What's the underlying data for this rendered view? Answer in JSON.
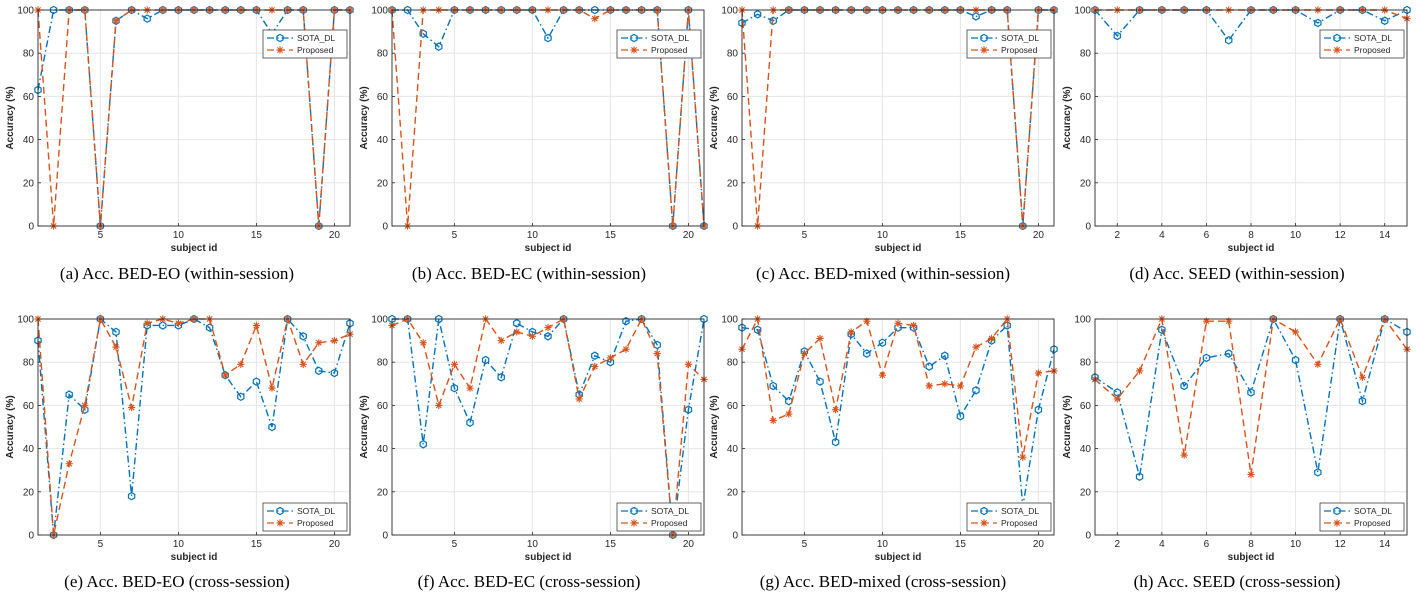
{
  "colors": {
    "sota": "#0072BD",
    "proposed": "#D95319",
    "grid": "#e6e6e6",
    "axis": "#262626"
  },
  "chart_data": [
    {
      "type": "line",
      "panel": "a",
      "caption": "(a) Acc. BED-EO (within-session)",
      "xlabel": "subject id",
      "ylabel": "Accuracy (%)",
      "xlim": [
        1,
        21
      ],
      "ylim": [
        0,
        100
      ],
      "xticks": [
        5,
        10,
        15,
        20
      ],
      "yticks": [
        0,
        20,
        40,
        60,
        80,
        100
      ],
      "grid": true,
      "legend": "top-right",
      "x": [
        1,
        2,
        3,
        4,
        5,
        6,
        7,
        8,
        9,
        10,
        11,
        12,
        13,
        14,
        15,
        16,
        17,
        18,
        19,
        20,
        21
      ],
      "series": [
        {
          "name": "SOTA_DL",
          "values": [
            63,
            100,
            100,
            100,
            0,
            95,
            100,
            96,
            100,
            100,
            100,
            100,
            100,
            100,
            100,
            89,
            100,
            100,
            0,
            100,
            100
          ]
        },
        {
          "name": "Proposed",
          "values": [
            100,
            0,
            100,
            100,
            0,
            95,
            100,
            100,
            100,
            100,
            100,
            100,
            100,
            100,
            100,
            100,
            100,
            100,
            0,
            100,
            100
          ]
        }
      ]
    },
    {
      "type": "line",
      "panel": "b",
      "caption": "(b) Acc. BED-EC (within-session)",
      "xlabel": "subject id",
      "ylabel": "Accuracy (%)",
      "xlim": [
        1,
        21
      ],
      "ylim": [
        0,
        100
      ],
      "xticks": [
        5,
        10,
        15,
        20
      ],
      "yticks": [
        0,
        20,
        40,
        60,
        80,
        100
      ],
      "grid": true,
      "legend": "top-right",
      "x": [
        1,
        2,
        3,
        4,
        5,
        6,
        7,
        8,
        9,
        10,
        11,
        12,
        13,
        14,
        15,
        16,
        17,
        18,
        19,
        20,
        21
      ],
      "series": [
        {
          "name": "SOTA_DL",
          "values": [
            100,
            100,
            89,
            83,
            100,
            100,
            100,
            100,
            100,
            100,
            87,
            100,
            100,
            100,
            100,
            100,
            100,
            100,
            0,
            100,
            0
          ]
        },
        {
          "name": "Proposed",
          "values": [
            100,
            0,
            100,
            100,
            100,
            100,
            100,
            100,
            100,
            100,
            100,
            100,
            100,
            96,
            100,
            100,
            100,
            100,
            0,
            100,
            0
          ]
        }
      ]
    },
    {
      "type": "line",
      "panel": "c",
      "caption": "(c) Acc. BED-mixed (within-session)",
      "xlabel": "subject id",
      "ylabel": "Accuracy (%)",
      "xlim": [
        1,
        21
      ],
      "ylim": [
        0,
        100
      ],
      "xticks": [
        5,
        10,
        15,
        20
      ],
      "yticks": [
        0,
        20,
        40,
        60,
        80,
        100
      ],
      "grid": true,
      "legend": "top-right",
      "x": [
        1,
        2,
        3,
        4,
        5,
        6,
        7,
        8,
        9,
        10,
        11,
        12,
        13,
        14,
        15,
        16,
        17,
        18,
        19,
        20,
        21
      ],
      "series": [
        {
          "name": "SOTA_DL",
          "values": [
            94,
            98,
            95,
            100,
            100,
            100,
            100,
            100,
            100,
            100,
            100,
            100,
            100,
            100,
            100,
            97,
            100,
            100,
            0,
            100,
            100
          ]
        },
        {
          "name": "Proposed",
          "values": [
            100,
            0,
            100,
            100,
            100,
            100,
            100,
            100,
            100,
            100,
            100,
            100,
            100,
            100,
            100,
            100,
            100,
            100,
            0,
            100,
            100
          ]
        }
      ]
    },
    {
      "type": "line",
      "panel": "d",
      "caption": "(d) Acc. SEED (within-session)",
      "xlabel": "subject id",
      "ylabel": "Accuracy (%)",
      "xlim": [
        1,
        15
      ],
      "ylim": [
        0,
        100
      ],
      "xticks": [
        2,
        4,
        6,
        8,
        10,
        12,
        14
      ],
      "yticks": [
        0,
        20,
        40,
        60,
        80,
        100
      ],
      "grid": true,
      "legend": "top-right",
      "x": [
        1,
        2,
        3,
        4,
        5,
        6,
        7,
        8,
        9,
        10,
        11,
        12,
        13,
        14,
        15
      ],
      "series": [
        {
          "name": "SOTA_DL",
          "values": [
            100,
            88,
            100,
            100,
            100,
            100,
            86,
            100,
            100,
            100,
            94,
            100,
            100,
            95,
            100
          ]
        },
        {
          "name": "Proposed",
          "values": [
            100,
            100,
            100,
            100,
            100,
            100,
            100,
            100,
            100,
            100,
            100,
            100,
            100,
            100,
            96
          ]
        }
      ]
    },
    {
      "type": "line",
      "panel": "e",
      "caption": "(e) Acc. BED-EO (cross-session)",
      "xlabel": "subject id",
      "ylabel": "Accuracy (%)",
      "xlim": [
        1,
        21
      ],
      "ylim": [
        0,
        100
      ],
      "xticks": [
        5,
        10,
        15,
        20
      ],
      "yticks": [
        0,
        20,
        40,
        60,
        80,
        100
      ],
      "grid": true,
      "legend": "bottom-right",
      "x": [
        1,
        2,
        3,
        4,
        5,
        6,
        7,
        8,
        9,
        10,
        11,
        12,
        13,
        14,
        15,
        16,
        17,
        18,
        19,
        20,
        21
      ],
      "series": [
        {
          "name": "SOTA_DL",
          "values": [
            90,
            0,
            65,
            58,
            100,
            94,
            18,
            97,
            97,
            97,
            100,
            96,
            74,
            64,
            71,
            50,
            100,
            92,
            76,
            75,
            98
          ]
        },
        {
          "name": "Proposed",
          "values": [
            100,
            0,
            33,
            60,
            100,
            87,
            59,
            98,
            100,
            98,
            100,
            100,
            74,
            79,
            97,
            68,
            100,
            79,
            89,
            90,
            93
          ]
        }
      ]
    },
    {
      "type": "line",
      "panel": "f",
      "caption": "(f) Acc. BED-EC (cross-session)",
      "xlabel": "subject id",
      "ylabel": "Accuracy (%)",
      "xlim": [
        1,
        21
      ],
      "ylim": [
        0,
        100
      ],
      "xticks": [
        5,
        10,
        15,
        20
      ],
      "yticks": [
        0,
        20,
        40,
        60,
        80,
        100
      ],
      "grid": true,
      "legend": "bottom-right",
      "x": [
        1,
        2,
        3,
        4,
        5,
        6,
        7,
        8,
        9,
        10,
        11,
        12,
        13,
        14,
        15,
        16,
        17,
        18,
        19,
        20,
        21
      ],
      "series": [
        {
          "name": "SOTA_DL",
          "values": [
            100,
            100,
            42,
            100,
            68,
            52,
            81,
            73,
            98,
            94,
            92,
            100,
            65,
            83,
            80,
            99,
            100,
            88,
            0,
            58,
            100
          ]
        },
        {
          "name": "Proposed",
          "values": [
            97,
            100,
            89,
            60,
            79,
            68,
            100,
            90,
            94,
            92,
            96,
            100,
            63,
            78,
            82,
            86,
            100,
            84,
            0,
            79,
            72
          ]
        }
      ]
    },
    {
      "type": "line",
      "panel": "g",
      "caption": "(g) Acc. BED-mixed (cross-session)",
      "xlabel": "subject id",
      "ylabel": "Accuracy (%)",
      "xlim": [
        1,
        21
      ],
      "ylim": [
        0,
        100
      ],
      "xticks": [
        5,
        10,
        15,
        20
      ],
      "yticks": [
        0,
        20,
        40,
        60,
        80,
        100
      ],
      "grid": true,
      "legend": "bottom-right",
      "x": [
        1,
        2,
        3,
        4,
        5,
        6,
        7,
        8,
        9,
        10,
        11,
        12,
        13,
        14,
        15,
        16,
        17,
        18,
        19,
        20,
        21
      ],
      "series": [
        {
          "name": "SOTA_DL",
          "values": [
            96,
            95,
            69,
            62,
            85,
            71,
            43,
            93,
            84,
            89,
            96,
            96,
            78,
            83,
            55,
            67,
            90,
            97,
            13,
            58,
            86
          ]
        },
        {
          "name": "Proposed",
          "values": [
            86,
            100,
            53,
            56,
            84,
            91,
            58,
            94,
            99,
            74,
            98,
            97,
            69,
            70,
            69,
            87,
            91,
            100,
            36,
            75,
            76
          ]
        }
      ]
    },
    {
      "type": "line",
      "panel": "h",
      "caption": "(h) Acc. SEED (cross-session)",
      "xlabel": "subject id",
      "ylabel": "Accuracy (%)",
      "xlim": [
        1,
        15
      ],
      "ylim": [
        0,
        100
      ],
      "xticks": [
        2,
        4,
        6,
        8,
        10,
        12,
        14
      ],
      "yticks": [
        0,
        20,
        40,
        60,
        80,
        100
      ],
      "grid": true,
      "legend": "bottom-right",
      "x": [
        1,
        2,
        3,
        4,
        5,
        6,
        7,
        8,
        9,
        10,
        11,
        12,
        13,
        14,
        15
      ],
      "series": [
        {
          "name": "SOTA_DL",
          "values": [
            73,
            66,
            27,
            95,
            69,
            82,
            84,
            66,
            100,
            81,
            29,
            100,
            62,
            100,
            94
          ]
        },
        {
          "name": "Proposed",
          "values": [
            72,
            63,
            76,
            100,
            37,
            99,
            99,
            28,
            100,
            94,
            79,
            100,
            73,
            100,
            86
          ]
        }
      ]
    }
  ]
}
